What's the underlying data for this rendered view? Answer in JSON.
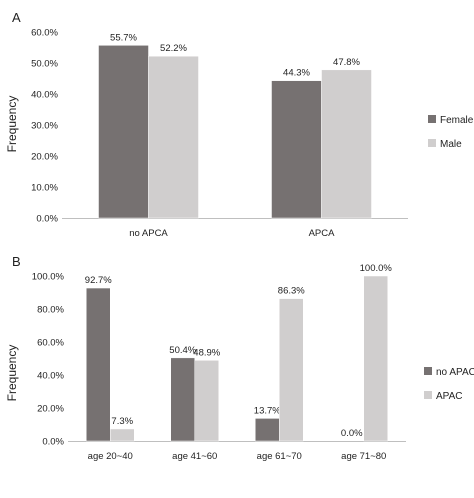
{
  "colors": {
    "series_dark": "#767171",
    "series_light": "#d0cece",
    "grid": "#d9d9d9",
    "text": "#222222"
  },
  "chart_data": [
    {
      "panel_label": "A",
      "type": "bar",
      "ylabel": "Frequency",
      "ylim": [
        0,
        60
      ],
      "yticks": [
        "0.0%",
        "10.0%",
        "20.0%",
        "30.0%",
        "40.0%",
        "50.0%",
        "60.0%"
      ],
      "categories": [
        "no APCA",
        "APCA"
      ],
      "series": [
        {
          "name": "Female",
          "values": [
            55.7,
            44.3
          ],
          "labels": [
            "55.7%",
            "44.3%"
          ]
        },
        {
          "name": "Male",
          "values": [
            52.2,
            47.8
          ],
          "labels": [
            "52.2%",
            "47.8%"
          ]
        }
      ],
      "legend_position": "right",
      "grid": false
    },
    {
      "panel_label": "B",
      "type": "bar",
      "ylabel": "Frequency",
      "ylim": [
        0,
        100
      ],
      "yticks": [
        "0.0%",
        "20.0%",
        "40.0%",
        "60.0%",
        "80.0%",
        "100.0%"
      ],
      "categories": [
        "age 20~40",
        "age 41~60",
        "age 61~70",
        "age 71~80"
      ],
      "series": [
        {
          "name": "no APAC",
          "values": [
            92.7,
            50.4,
            13.7,
            0.0
          ],
          "labels": [
            "92.7%",
            "50.4%",
            "13.7%",
            "0.0%"
          ]
        },
        {
          "name": "APAC",
          "values": [
            7.3,
            48.9,
            86.3,
            100.0
          ],
          "labels": [
            "7.3%",
            "48.9%",
            "86.3%",
            "100.0%"
          ]
        }
      ],
      "legend_position": "right",
      "grid": false
    }
  ]
}
